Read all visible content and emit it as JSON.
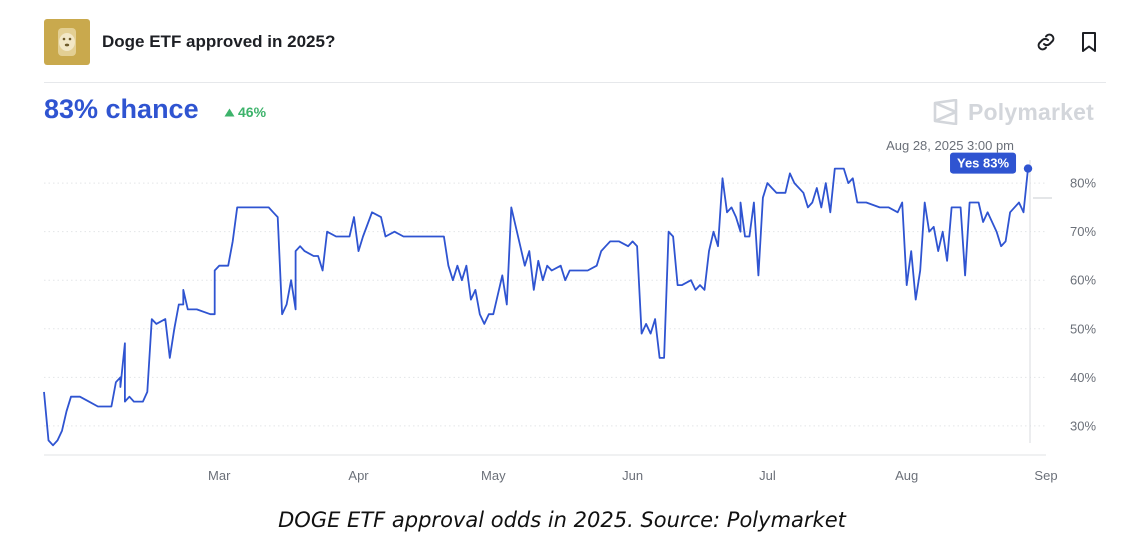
{
  "market": {
    "title": "Doge ETF approved in 2025?",
    "chance_text": "83% chance",
    "change_text": "46%",
    "brand": "Polymarket",
    "accent_color": "#2f54d1",
    "positive_color": "#3db36b",
    "icons": [
      "link-icon",
      "bookmark-icon",
      "triangle-up-icon",
      "polymarket-logo-icon"
    ]
  },
  "chart_data": {
    "type": "line",
    "title": "",
    "xlabel": "",
    "ylabel": "",
    "ylim": [
      24,
      86
    ],
    "y_ticks": [
      30,
      40,
      50,
      60,
      70,
      80
    ],
    "y_tick_labels": [
      "30%",
      "40%",
      "50%",
      "60%",
      "70%",
      "80%"
    ],
    "x_ticks": [
      {
        "label": "Mar",
        "date": "2025-03-01"
      },
      {
        "label": "Apr",
        "date": "2025-04-01"
      },
      {
        "label": "May",
        "date": "2025-05-01"
      },
      {
        "label": "Jun",
        "date": "2025-06-01"
      },
      {
        "label": "Jul",
        "date": "2025-07-01"
      },
      {
        "label": "Aug",
        "date": "2025-08-01"
      },
      {
        "label": "Sep",
        "date": "2025-09-01"
      }
    ],
    "xlim": [
      "2025-01-21",
      "2025-09-01"
    ],
    "grid": "horizontal-dotted",
    "tooltip": {
      "date_text": "Aug 28, 2025 3:00 pm",
      "label": "Yes 83%",
      "value": 83
    },
    "series": [
      {
        "name": "Yes",
        "color": "#2f54d1",
        "points": [
          [
            "2025-01-21",
            37
          ],
          [
            "2025-01-22",
            27
          ],
          [
            "2025-01-23",
            26
          ],
          [
            "2025-01-24",
            27
          ],
          [
            "2025-01-25",
            29
          ],
          [
            "2025-01-26",
            33
          ],
          [
            "2025-01-27",
            36
          ],
          [
            "2025-01-29",
            36
          ],
          [
            "2025-01-31",
            35
          ],
          [
            "2025-02-02",
            34
          ],
          [
            "2025-02-05",
            34
          ],
          [
            "2025-02-06",
            39
          ],
          [
            "2025-02-07",
            40
          ],
          [
            "2025-02-07",
            38
          ],
          [
            "2025-02-08",
            47
          ],
          [
            "2025-02-08",
            35
          ],
          [
            "2025-02-09",
            36
          ],
          [
            "2025-02-10",
            35
          ],
          [
            "2025-02-12",
            35
          ],
          [
            "2025-02-13",
            37
          ],
          [
            "2025-02-14",
            52
          ],
          [
            "2025-02-15",
            51
          ],
          [
            "2025-02-17",
            52
          ],
          [
            "2025-02-18",
            44
          ],
          [
            "2025-02-19",
            50
          ],
          [
            "2025-02-20",
            55
          ],
          [
            "2025-02-21",
            55
          ],
          [
            "2025-02-21",
            58
          ],
          [
            "2025-02-22",
            54
          ],
          [
            "2025-02-24",
            54
          ],
          [
            "2025-02-27",
            53
          ],
          [
            "2025-02-28",
            53
          ],
          [
            "2025-02-28",
            62
          ],
          [
            "2025-03-01",
            63
          ],
          [
            "2025-03-03",
            63
          ],
          [
            "2025-03-04",
            68
          ],
          [
            "2025-03-05",
            75
          ],
          [
            "2025-03-07",
            75
          ],
          [
            "2025-03-12",
            75
          ],
          [
            "2025-03-13",
            74
          ],
          [
            "2025-03-14",
            73
          ],
          [
            "2025-03-15",
            53
          ],
          [
            "2025-03-16",
            55
          ],
          [
            "2025-03-17",
            60
          ],
          [
            "2025-03-18",
            54
          ],
          [
            "2025-03-18",
            66
          ],
          [
            "2025-03-19",
            67
          ],
          [
            "2025-03-20",
            66
          ],
          [
            "2025-03-22",
            65
          ],
          [
            "2025-03-23",
            65
          ],
          [
            "2025-03-24",
            62
          ],
          [
            "2025-03-25",
            70
          ],
          [
            "2025-03-27",
            69
          ],
          [
            "2025-03-30",
            69
          ],
          [
            "2025-03-31",
            73
          ],
          [
            "2025-04-01",
            66
          ],
          [
            "2025-04-02",
            69
          ],
          [
            "2025-04-04",
            74
          ],
          [
            "2025-04-06",
            73
          ],
          [
            "2025-04-07",
            69
          ],
          [
            "2025-04-09",
            70
          ],
          [
            "2025-04-11",
            69
          ],
          [
            "2025-04-14",
            69
          ],
          [
            "2025-04-18",
            69
          ],
          [
            "2025-04-20",
            69
          ],
          [
            "2025-04-21",
            63
          ],
          [
            "2025-04-22",
            60
          ],
          [
            "2025-04-23",
            63
          ],
          [
            "2025-04-24",
            60
          ],
          [
            "2025-04-25",
            63
          ],
          [
            "2025-04-26",
            56
          ],
          [
            "2025-04-27",
            58
          ],
          [
            "2025-04-28",
            53
          ],
          [
            "2025-04-29",
            51
          ],
          [
            "2025-04-30",
            53
          ],
          [
            "2025-05-01",
            53
          ],
          [
            "2025-05-03",
            61
          ],
          [
            "2025-05-04",
            55
          ],
          [
            "2025-05-05",
            75
          ],
          [
            "2025-05-06",
            71
          ],
          [
            "2025-05-07",
            67
          ],
          [
            "2025-05-08",
            63
          ],
          [
            "2025-05-09",
            66
          ],
          [
            "2025-05-10",
            58
          ],
          [
            "2025-05-11",
            64
          ],
          [
            "2025-05-12",
            60
          ],
          [
            "2025-05-13",
            63
          ],
          [
            "2025-05-14",
            62
          ],
          [
            "2025-05-16",
            63
          ],
          [
            "2025-05-17",
            60
          ],
          [
            "2025-05-18",
            62
          ],
          [
            "2025-05-20",
            62
          ],
          [
            "2025-05-22",
            62
          ],
          [
            "2025-05-24",
            63
          ],
          [
            "2025-05-25",
            66
          ],
          [
            "2025-05-26",
            67
          ],
          [
            "2025-05-27",
            68
          ],
          [
            "2025-05-29",
            68
          ],
          [
            "2025-05-31",
            67
          ],
          [
            "2025-06-01",
            68
          ],
          [
            "2025-06-02",
            67
          ],
          [
            "2025-06-03",
            49
          ],
          [
            "2025-06-04",
            51
          ],
          [
            "2025-06-05",
            49
          ],
          [
            "2025-06-06",
            52
          ],
          [
            "2025-06-07",
            44
          ],
          [
            "2025-06-08",
            44
          ],
          [
            "2025-06-09",
            70
          ],
          [
            "2025-06-10",
            69
          ],
          [
            "2025-06-11",
            59
          ],
          [
            "2025-06-12",
            59
          ],
          [
            "2025-06-14",
            60
          ],
          [
            "2025-06-15",
            58
          ],
          [
            "2025-06-16",
            59
          ],
          [
            "2025-06-17",
            58
          ],
          [
            "2025-06-18",
            66
          ],
          [
            "2025-06-19",
            70
          ],
          [
            "2025-06-20",
            67
          ],
          [
            "2025-06-21",
            81
          ],
          [
            "2025-06-22",
            74
          ],
          [
            "2025-06-23",
            75
          ],
          [
            "2025-06-24",
            73
          ],
          [
            "2025-06-25",
            70
          ],
          [
            "2025-06-25",
            76
          ],
          [
            "2025-06-26",
            69
          ],
          [
            "2025-06-27",
            69
          ],
          [
            "2025-06-28",
            76
          ],
          [
            "2025-06-29",
            61
          ],
          [
            "2025-06-30",
            77
          ],
          [
            "2025-07-01",
            80
          ],
          [
            "2025-07-02",
            79
          ],
          [
            "2025-07-03",
            78
          ],
          [
            "2025-07-05",
            78
          ],
          [
            "2025-07-06",
            82
          ],
          [
            "2025-07-07",
            80
          ],
          [
            "2025-07-09",
            78
          ],
          [
            "2025-07-10",
            75
          ],
          [
            "2025-07-11",
            76
          ],
          [
            "2025-07-12",
            79
          ],
          [
            "2025-07-13",
            75
          ],
          [
            "2025-07-14",
            80
          ],
          [
            "2025-07-15",
            74
          ],
          [
            "2025-07-16",
            83
          ],
          [
            "2025-07-18",
            83
          ],
          [
            "2025-07-19",
            80
          ],
          [
            "2025-07-20",
            81
          ],
          [
            "2025-07-21",
            76
          ],
          [
            "2025-07-23",
            76
          ],
          [
            "2025-07-26",
            75
          ],
          [
            "2025-07-28",
            75
          ],
          [
            "2025-07-30",
            74
          ],
          [
            "2025-07-31",
            76
          ],
          [
            "2025-08-01",
            59
          ],
          [
            "2025-08-02",
            66
          ],
          [
            "2025-08-03",
            56
          ],
          [
            "2025-08-04",
            62
          ],
          [
            "2025-08-05",
            76
          ],
          [
            "2025-08-06",
            70
          ],
          [
            "2025-08-07",
            71
          ],
          [
            "2025-08-08",
            66
          ],
          [
            "2025-08-09",
            70
          ],
          [
            "2025-08-10",
            64
          ],
          [
            "2025-08-11",
            75
          ],
          [
            "2025-08-13",
            75
          ],
          [
            "2025-08-14",
            61
          ],
          [
            "2025-08-15",
            76
          ],
          [
            "2025-08-17",
            76
          ],
          [
            "2025-08-18",
            72
          ],
          [
            "2025-08-19",
            74
          ],
          [
            "2025-08-20",
            72
          ],
          [
            "2025-08-21",
            70
          ],
          [
            "2025-08-22",
            67
          ],
          [
            "2025-08-23",
            68
          ],
          [
            "2025-08-24",
            74
          ],
          [
            "2025-08-26",
            76
          ],
          [
            "2025-08-27",
            74
          ],
          [
            "2025-08-28",
            83
          ]
        ]
      }
    ]
  },
  "caption": "DOGE ETF approval odds in 2025. Source: Polymarket"
}
